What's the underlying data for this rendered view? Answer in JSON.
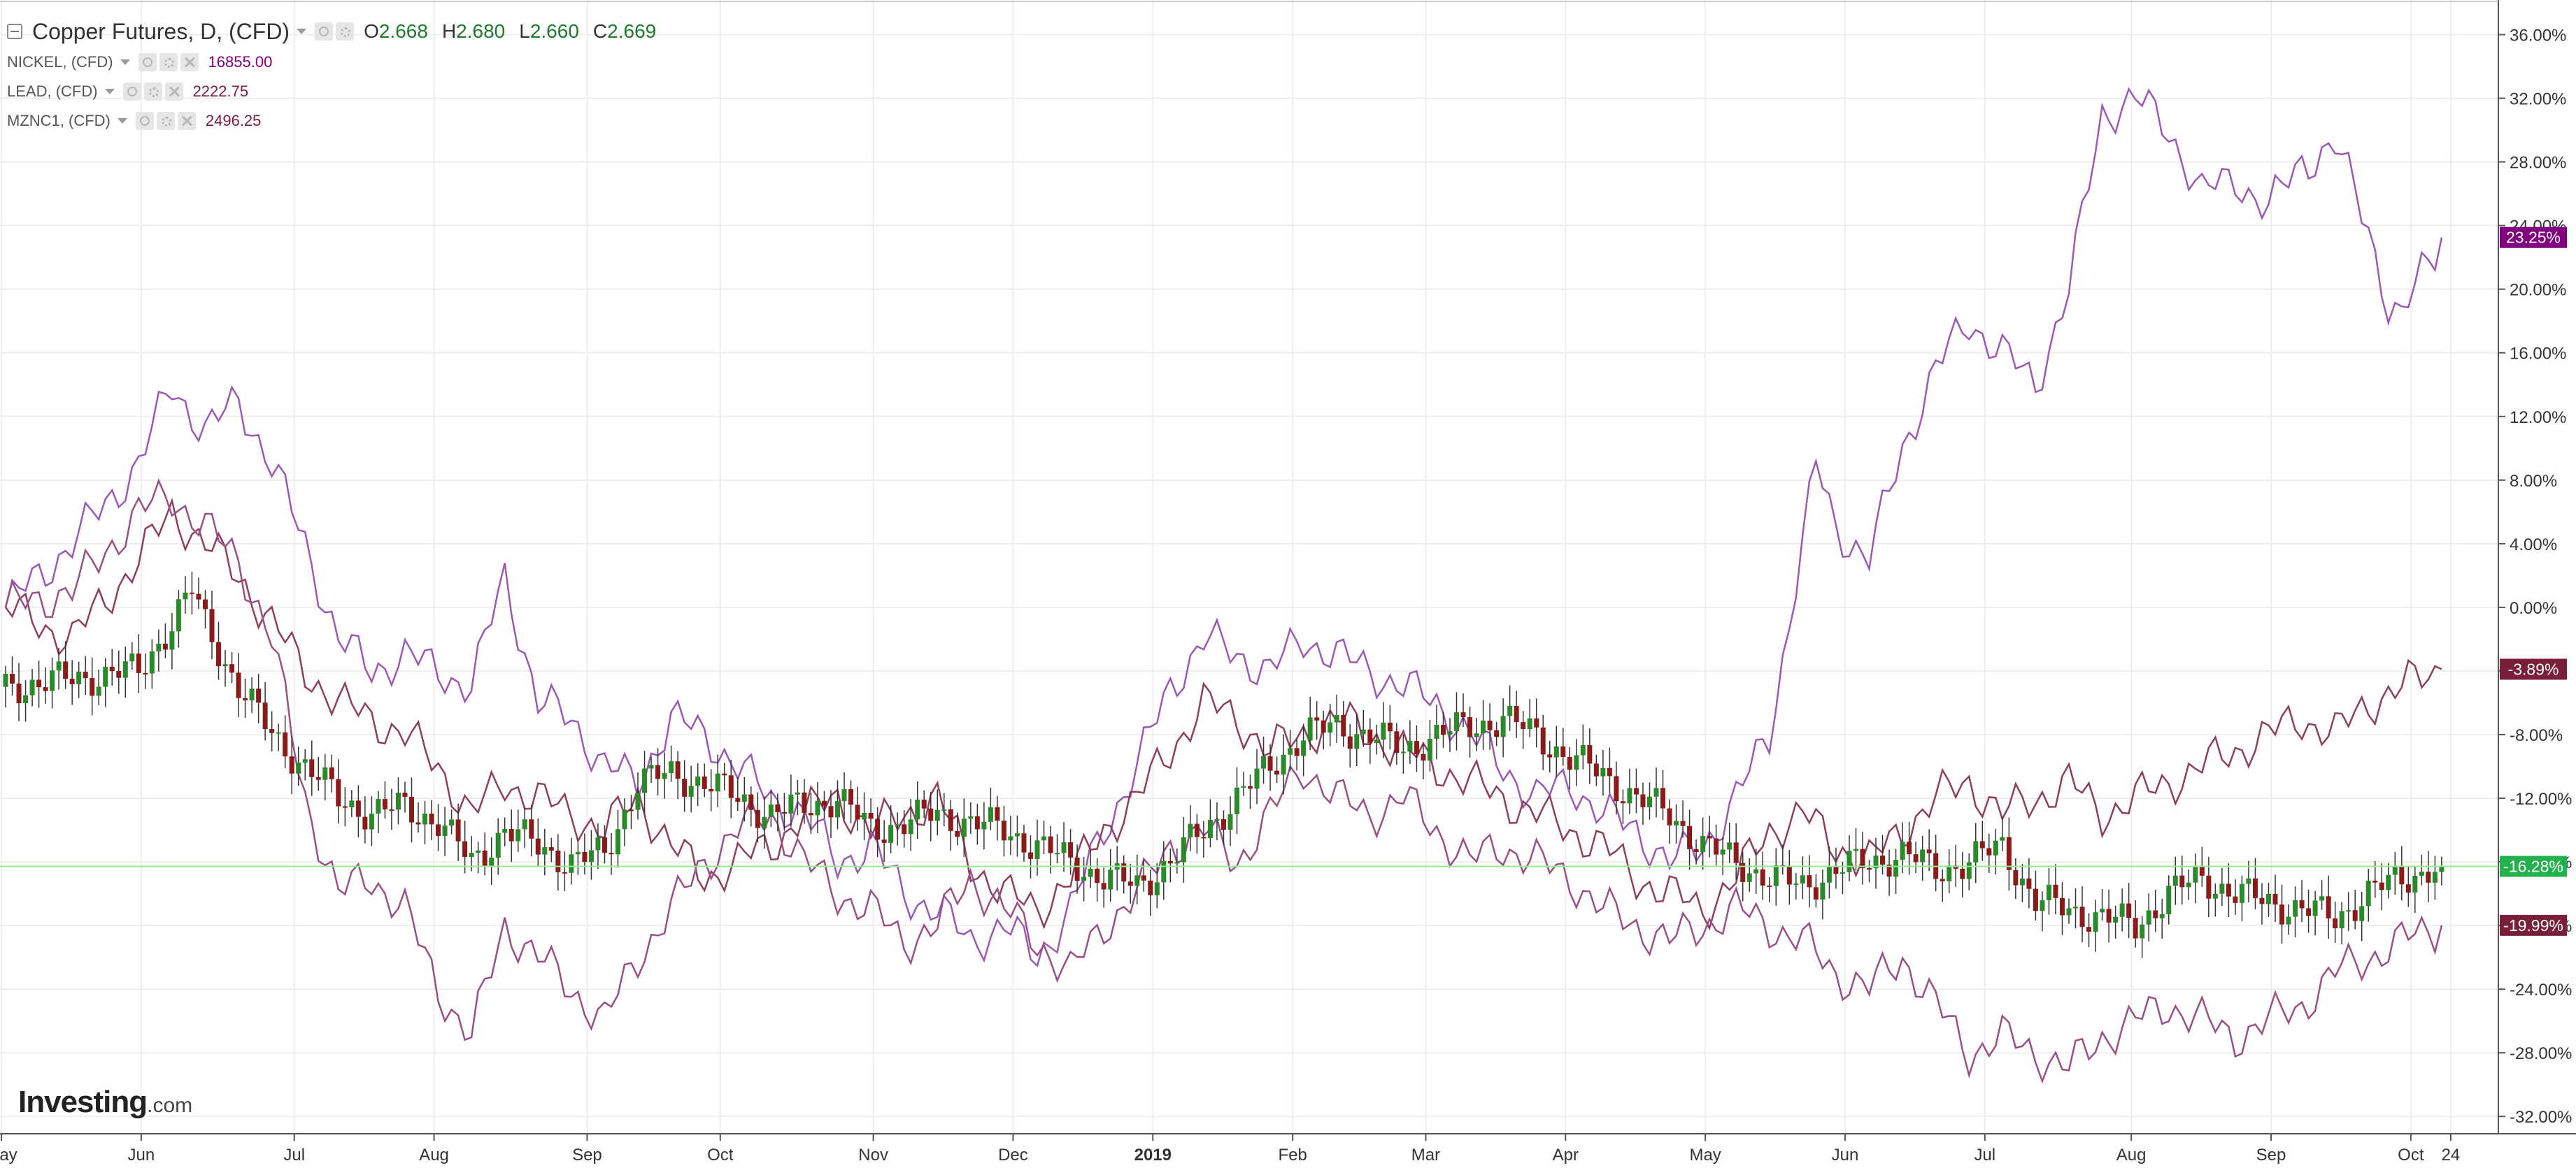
{
  "legend": {
    "main": {
      "title": "Copper Futures, D, (CFD)",
      "o_label": "O",
      "o_value": "2.668",
      "h_label": "H",
      "h_value": "2.680",
      "l_label": "L",
      "l_value": "2.660",
      "c_label": "C",
      "c_value": "2.669"
    },
    "overlays": [
      {
        "name": "NICKEL, (CFD)",
        "value": "16855.00"
      },
      {
        "name": "LEAD, (CFD)",
        "value": "2222.75"
      },
      {
        "name": "MZNC1, (CFD)",
        "value": "2496.25"
      }
    ]
  },
  "watermark": {
    "bold": "Investing",
    "suffix": ".com"
  },
  "colors": {
    "background": "#ffffff",
    "grid": "#eeeeee",
    "axis": "#555555",
    "nickel": "#9b59b6",
    "lead": "#9a4f86",
    "zinc": "#8e3e5e",
    "candle_up": "#2a8a2a",
    "candle_down": "#8b1a1a",
    "current_line": "#90ee90",
    "label_nickel": "#800080",
    "label_lead": "#7a1f3a",
    "label_zinc": "#7a1f3a",
    "label_copper": "#22b14c"
  },
  "chart_data": {
    "type": "line",
    "x_axis_labels": [
      "May",
      "Jun",
      "Jul",
      "Aug",
      "Sep",
      "Oct",
      "Nov",
      "Dec",
      "2019",
      "Feb",
      "Mar",
      "Apr",
      "May",
      "Jun",
      "Jul",
      "Aug",
      "Sep",
      "Oct",
      "24"
    ],
    "y_axis_labels": [
      "36.00%",
      "32.00%",
      "28.00%",
      "24.00%",
      "20.00%",
      "16.00%",
      "12.00%",
      "8.00%",
      "4.00%",
      "0.00%",
      "-4.00%",
      "-8.00%",
      "-12.00%",
      "-16.00%",
      "-20.00%",
      "-24.00%",
      "-28.00%",
      "-32.00%"
    ],
    "ylim": [
      -33,
      38
    ],
    "y_unit": "%",
    "current_value_labels": [
      {
        "series": "NICKEL, (CFD)",
        "text": "23.25%",
        "value": 23.25
      },
      {
        "series": "MZNC1, (CFD)",
        "text": "-3.89%",
        "value": -3.89
      },
      {
        "series": "Copper Futures, D, (CFD)",
        "text": "-16.28%",
        "value": -16.28
      },
      {
        "series": "LEAD, (CFD)",
        "text": "-19.99%",
        "value": -19.99
      }
    ],
    "series": [
      {
        "name": "NICKEL, (CFD)",
        "points": [
          [
            0,
            0
          ],
          [
            10,
            4
          ],
          [
            20,
            9
          ],
          [
            25,
            14
          ],
          [
            30,
            11
          ],
          [
            35,
            13
          ],
          [
            40,
            9
          ],
          [
            45,
            4
          ],
          [
            50,
            -2
          ],
          [
            55,
            -4
          ],
          [
            60,
            -3
          ],
          [
            65,
            -4
          ],
          [
            70,
            -5
          ],
          [
            75,
            2
          ],
          [
            80,
            -6
          ],
          [
            85,
            -7
          ],
          [
            90,
            -10
          ],
          [
            95,
            -11
          ],
          [
            100,
            -7
          ],
          [
            105,
            -8
          ],
          [
            110,
            -10
          ],
          [
            115,
            -12
          ],
          [
            120,
            -13
          ],
          [
            125,
            -16
          ],
          [
            130,
            -15
          ],
          [
            135,
            -18
          ],
          [
            140,
            -19
          ],
          [
            145,
            -21
          ],
          [
            150,
            -20
          ],
          [
            155,
            -22
          ],
          [
            160,
            -19
          ],
          [
            165,
            -14
          ],
          [
            170,
            -10
          ],
          [
            175,
            -5
          ],
          [
            180,
            -2
          ],
          [
            185,
            -3
          ],
          [
            190,
            -4
          ],
          [
            195,
            -2
          ],
          [
            200,
            -3
          ],
          [
            205,
            -4
          ],
          [
            210,
            -5
          ],
          [
            215,
            -6
          ],
          [
            220,
            -8
          ],
          [
            225,
            -10
          ],
          [
            230,
            -12
          ],
          [
            235,
            -11
          ],
          [
            240,
            -13
          ],
          [
            245,
            -14
          ],
          [
            250,
            -16
          ],
          [
            255,
            -15
          ],
          [
            260,
            -12
          ],
          [
            265,
            -8
          ],
          [
            270,
            4
          ],
          [
            272,
            9
          ],
          [
            275,
            5
          ],
          [
            280,
            3
          ],
          [
            285,
            10
          ],
          [
            290,
            15
          ],
          [
            295,
            18
          ],
          [
            300,
            16
          ],
          [
            305,
            14
          ],
          [
            310,
            20
          ],
          [
            315,
            31
          ],
          [
            320,
            32
          ],
          [
            325,
            30
          ],
          [
            330,
            26
          ],
          [
            335,
            27
          ],
          [
            340,
            25
          ],
          [
            345,
            28
          ],
          [
            350,
            29
          ],
          [
            355,
            24
          ],
          [
            358,
            19
          ],
          [
            360,
            18
          ],
          [
            363,
            21
          ],
          [
            366,
            23.25
          ]
        ]
      },
      {
        "name": "MZNC1, (CFD)",
        "points": [
          [
            0,
            0
          ],
          [
            10,
            -2
          ],
          [
            20,
            3
          ],
          [
            25,
            6
          ],
          [
            30,
            4
          ],
          [
            35,
            2
          ],
          [
            40,
            -1
          ],
          [
            45,
            -4
          ],
          [
            50,
            -6
          ],
          [
            55,
            -7
          ],
          [
            60,
            -8
          ],
          [
            65,
            -10
          ],
          [
            70,
            -13
          ],
          [
            75,
            -11
          ],
          [
            80,
            -12
          ],
          [
            85,
            -13
          ],
          [
            90,
            -14
          ],
          [
            95,
            -12
          ],
          [
            100,
            -15
          ],
          [
            105,
            -17
          ],
          [
            110,
            -16
          ],
          [
            115,
            -15
          ],
          [
            120,
            -13
          ],
          [
            125,
            -12
          ],
          [
            130,
            -14
          ],
          [
            135,
            -13
          ],
          [
            140,
            -12
          ],
          [
            145,
            -16
          ],
          [
            150,
            -18
          ],
          [
            155,
            -19
          ],
          [
            160,
            -17
          ],
          [
            165,
            -14
          ],
          [
            170,
            -12
          ],
          [
            175,
            -9
          ],
          [
            180,
            -6
          ],
          [
            185,
            -7
          ],
          [
            190,
            -9
          ],
          [
            195,
            -8
          ],
          [
            200,
            -7
          ],
          [
            205,
            -8
          ],
          [
            210,
            -9
          ],
          [
            215,
            -10
          ],
          [
            220,
            -11
          ],
          [
            225,
            -12
          ],
          [
            230,
            -13
          ],
          [
            235,
            -14
          ],
          [
            240,
            -15
          ],
          [
            245,
            -17
          ],
          [
            250,
            -18
          ],
          [
            255,
            -19
          ],
          [
            260,
            -17
          ],
          [
            265,
            -14
          ],
          [
            270,
            -13
          ],
          [
            275,
            -15
          ],
          [
            280,
            -16
          ],
          [
            285,
            -14
          ],
          [
            290,
            -12
          ],
          [
            295,
            -11
          ],
          [
            300,
            -13
          ],
          [
            305,
            -12
          ],
          [
            310,
            -11
          ],
          [
            315,
            -13
          ],
          [
            320,
            -12
          ],
          [
            325,
            -11
          ],
          [
            330,
            -10
          ],
          [
            335,
            -9
          ],
          [
            340,
            -8
          ],
          [
            345,
            -7
          ],
          [
            350,
            -8
          ],
          [
            355,
            -6
          ],
          [
            360,
            -5
          ],
          [
            366,
            -3.89
          ]
        ]
      },
      {
        "name": "LEAD, (CFD)",
        "points": [
          [
            0,
            0
          ],
          [
            10,
            1
          ],
          [
            20,
            6
          ],
          [
            25,
            7
          ],
          [
            30,
            5
          ],
          [
            35,
            3
          ],
          [
            40,
            -2
          ],
          [
            45,
            -12
          ],
          [
            50,
            -18
          ],
          [
            55,
            -17
          ],
          [
            60,
            -19
          ],
          [
            65,
            -24
          ],
          [
            70,
            -27
          ],
          [
            75,
            -20
          ],
          [
            80,
            -22
          ],
          [
            85,
            -24
          ],
          [
            90,
            -26
          ],
          [
            95,
            -22
          ],
          [
            100,
            -19
          ],
          [
            105,
            -16
          ],
          [
            110,
            -14
          ],
          [
            115,
            -13
          ],
          [
            120,
            -16
          ],
          [
            125,
            -18
          ],
          [
            130,
            -19
          ],
          [
            135,
            -21
          ],
          [
            140,
            -20
          ],
          [
            145,
            -17
          ],
          [
            150,
            -19
          ],
          [
            155,
            -21
          ],
          [
            160,
            -23
          ],
          [
            165,
            -20
          ],
          [
            170,
            -18
          ],
          [
            175,
            -15
          ],
          [
            180,
            -14
          ],
          [
            185,
            -16
          ],
          [
            190,
            -13
          ],
          [
            195,
            -10
          ],
          [
            200,
            -12
          ],
          [
            205,
            -13
          ],
          [
            210,
            -12
          ],
          [
            215,
            -14
          ],
          [
            220,
            -16
          ],
          [
            225,
            -15
          ],
          [
            230,
            -16
          ],
          [
            235,
            -17
          ],
          [
            240,
            -19
          ],
          [
            245,
            -20
          ],
          [
            250,
            -21
          ],
          [
            255,
            -20
          ],
          [
            260,
            -19
          ],
          [
            265,
            -20
          ],
          [
            270,
            -21
          ],
          [
            275,
            -23
          ],
          [
            280,
            -24
          ],
          [
            285,
            -22
          ],
          [
            290,
            -25
          ],
          [
            295,
            -28
          ],
          [
            300,
            -27
          ],
          [
            305,
            -28
          ],
          [
            310,
            -29
          ],
          [
            315,
            -27
          ],
          [
            320,
            -26
          ],
          [
            325,
            -25
          ],
          [
            330,
            -26
          ],
          [
            335,
            -27
          ],
          [
            340,
            -26
          ],
          [
            345,
            -25
          ],
          [
            350,
            -23
          ],
          [
            355,
            -22
          ],
          [
            360,
            -21
          ],
          [
            366,
            -19.99
          ]
        ]
      },
      {
        "name": "Copper Futures, D, (CFD)",
        "kind": "candlestick",
        "points": [
          [
            0,
            -5
          ],
          [
            10,
            -4.5
          ],
          [
            20,
            -4
          ],
          [
            25,
            -1
          ],
          [
            28,
            1
          ],
          [
            30,
            -1
          ],
          [
            35,
            -5
          ],
          [
            40,
            -8
          ],
          [
            45,
            -10
          ],
          [
            50,
            -12
          ],
          [
            55,
            -13
          ],
          [
            60,
            -12.5
          ],
          [
            65,
            -13.5
          ],
          [
            70,
            -16
          ],
          [
            75,
            -14
          ],
          [
            80,
            -15
          ],
          [
            85,
            -16
          ],
          [
            90,
            -15.5
          ],
          [
            95,
            -11
          ],
          [
            100,
            -10.5
          ],
          [
            105,
            -11
          ],
          [
            110,
            -12
          ],
          [
            115,
            -13
          ],
          [
            120,
            -12.5
          ],
          [
            125,
            -12
          ],
          [
            130,
            -14
          ],
          [
            135,
            -13.5
          ],
          [
            140,
            -13
          ],
          [
            145,
            -13.5
          ],
          [
            150,
            -14
          ],
          [
            155,
            -15
          ],
          [
            160,
            -16
          ],
          [
            165,
            -17
          ],
          [
            170,
            -17.5
          ],
          [
            175,
            -16
          ],
          [
            180,
            -14
          ],
          [
            185,
            -12
          ],
          [
            190,
            -10
          ],
          [
            195,
            -8
          ],
          [
            200,
            -7.5
          ],
          [
            205,
            -8
          ],
          [
            210,
            -9
          ],
          [
            215,
            -8
          ],
          [
            220,
            -7.5
          ],
          [
            225,
            -7
          ],
          [
            230,
            -8
          ],
          [
            235,
            -9.5
          ],
          [
            240,
            -10.5
          ],
          [
            245,
            -12
          ],
          [
            250,
            -13
          ],
          [
            255,
            -15
          ],
          [
            260,
            -16
          ],
          [
            265,
            -17
          ],
          [
            270,
            -17.5
          ],
          [
            275,
            -16.5
          ],
          [
            280,
            -16
          ],
          [
            285,
            -15.5
          ],
          [
            290,
            -16.5
          ],
          [
            295,
            -16
          ],
          [
            300,
            -15
          ],
          [
            305,
            -18.5
          ],
          [
            310,
            -19
          ],
          [
            315,
            -19.5
          ],
          [
            320,
            -20
          ],
          [
            325,
            -18
          ],
          [
            330,
            -17
          ],
          [
            335,
            -18
          ],
          [
            340,
            -18.5
          ],
          [
            345,
            -19
          ],
          [
            350,
            -19.5
          ],
          [
            355,
            -18
          ],
          [
            360,
            -17
          ],
          [
            366,
            -16.28
          ]
        ]
      }
    ]
  }
}
